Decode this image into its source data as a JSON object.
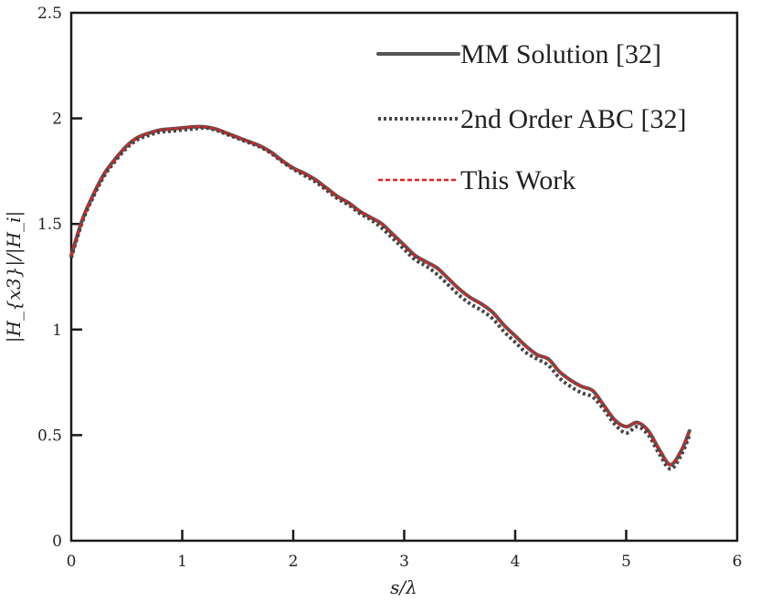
{
  "chart_data": {
    "type": "line",
    "title": "",
    "xlabel": "s/λ",
    "ylabel": "|H_{x3}|/|H_i|",
    "xlim": [
      0,
      6
    ],
    "ylim": [
      0,
      2.5
    ],
    "xticks": [
      "0",
      "1",
      "2",
      "3",
      "4",
      "5",
      "6"
    ],
    "yticks": [
      "0",
      "0.5",
      "1",
      "1.5",
      "2",
      "2.5"
    ],
    "grid": false,
    "legend_position": "top-right",
    "series": [
      {
        "name": "MM Solution [32]",
        "style": "solid",
        "color": "#555555",
        "x": [
          0,
          0.1,
          0.2,
          0.3,
          0.4,
          0.5,
          0.6,
          0.7,
          0.8,
          0.9,
          1.0,
          1.1,
          1.2,
          1.3,
          1.4,
          1.5,
          1.6,
          1.7,
          1.8,
          1.9,
          2.0,
          2.1,
          2.2,
          2.3,
          2.4,
          2.5,
          2.6,
          2.7,
          2.8,
          2.9,
          3.0,
          3.1,
          3.2,
          3.3,
          3.4,
          3.5,
          3.6,
          3.7,
          3.8,
          3.9,
          4.0,
          4.1,
          4.2,
          4.3,
          4.4,
          4.5,
          4.6,
          4.7,
          4.8,
          4.9,
          5.0,
          5.1,
          5.2,
          5.3,
          5.4,
          5.5,
          5.57
        ],
        "y": [
          1.35,
          1.52,
          1.64,
          1.74,
          1.81,
          1.87,
          1.91,
          1.93,
          1.945,
          1.95,
          1.955,
          1.96,
          1.96,
          1.95,
          1.93,
          1.91,
          1.89,
          1.87,
          1.84,
          1.8,
          1.765,
          1.74,
          1.71,
          1.67,
          1.63,
          1.6,
          1.56,
          1.53,
          1.5,
          1.45,
          1.4,
          1.35,
          1.32,
          1.29,
          1.24,
          1.19,
          1.15,
          1.12,
          1.08,
          1.02,
          0.97,
          0.92,
          0.88,
          0.86,
          0.8,
          0.76,
          0.73,
          0.71,
          0.64,
          0.57,
          0.54,
          0.56,
          0.52,
          0.43,
          0.36,
          0.43,
          0.52
        ]
      },
      {
        "name": "2nd Order ABC [32]",
        "style": "dotted",
        "color": "#444444",
        "x": [
          0,
          0.1,
          0.2,
          0.3,
          0.4,
          0.5,
          0.6,
          0.7,
          0.8,
          0.9,
          1.0,
          1.1,
          1.2,
          1.3,
          1.4,
          1.5,
          1.6,
          1.7,
          1.8,
          1.9,
          2.0,
          2.1,
          2.2,
          2.3,
          2.4,
          2.5,
          2.6,
          2.7,
          2.8,
          2.9,
          3.0,
          3.1,
          3.2,
          3.3,
          3.4,
          3.5,
          3.6,
          3.7,
          3.8,
          3.9,
          4.0,
          4.1,
          4.2,
          4.3,
          4.4,
          4.5,
          4.6,
          4.7,
          4.8,
          4.9,
          5.0,
          5.1,
          5.2,
          5.3,
          5.4,
          5.5,
          5.57
        ],
        "y": [
          1.34,
          1.51,
          1.63,
          1.73,
          1.8,
          1.86,
          1.9,
          1.92,
          1.935,
          1.94,
          1.945,
          1.95,
          1.955,
          1.945,
          1.925,
          1.905,
          1.885,
          1.865,
          1.835,
          1.795,
          1.76,
          1.73,
          1.7,
          1.66,
          1.62,
          1.59,
          1.55,
          1.52,
          1.48,
          1.43,
          1.38,
          1.33,
          1.3,
          1.26,
          1.21,
          1.16,
          1.12,
          1.09,
          1.05,
          0.99,
          0.94,
          0.89,
          0.86,
          0.83,
          0.77,
          0.73,
          0.7,
          0.68,
          0.62,
          0.55,
          0.51,
          0.54,
          0.5,
          0.41,
          0.34,
          0.41,
          0.5
        ]
      },
      {
        "name": "This Work",
        "style": "dashed",
        "color": "#e32020",
        "x": [
          0,
          0.1,
          0.2,
          0.3,
          0.4,
          0.5,
          0.6,
          0.7,
          0.8,
          0.9,
          1.0,
          1.1,
          1.2,
          1.3,
          1.4,
          1.5,
          1.6,
          1.7,
          1.8,
          1.9,
          2.0,
          2.1,
          2.2,
          2.3,
          2.4,
          2.5,
          2.6,
          2.7,
          2.8,
          2.9,
          3.0,
          3.1,
          3.2,
          3.3,
          3.4,
          3.5,
          3.6,
          3.7,
          3.8,
          3.9,
          4.0,
          4.1,
          4.2,
          4.3,
          4.4,
          4.5,
          4.6,
          4.7,
          4.8,
          4.9,
          5.0,
          5.1,
          5.2,
          5.3,
          5.4,
          5.5,
          5.57
        ],
        "y": [
          1.35,
          1.52,
          1.64,
          1.74,
          1.81,
          1.87,
          1.91,
          1.93,
          1.945,
          1.95,
          1.955,
          1.96,
          1.96,
          1.95,
          1.93,
          1.91,
          1.89,
          1.87,
          1.84,
          1.8,
          1.765,
          1.74,
          1.71,
          1.67,
          1.63,
          1.6,
          1.56,
          1.53,
          1.5,
          1.45,
          1.4,
          1.35,
          1.32,
          1.29,
          1.24,
          1.19,
          1.15,
          1.12,
          1.08,
          1.02,
          0.97,
          0.92,
          0.88,
          0.86,
          0.8,
          0.76,
          0.73,
          0.71,
          0.64,
          0.57,
          0.54,
          0.56,
          0.52,
          0.43,
          0.36,
          0.43,
          0.52
        ]
      }
    ]
  }
}
